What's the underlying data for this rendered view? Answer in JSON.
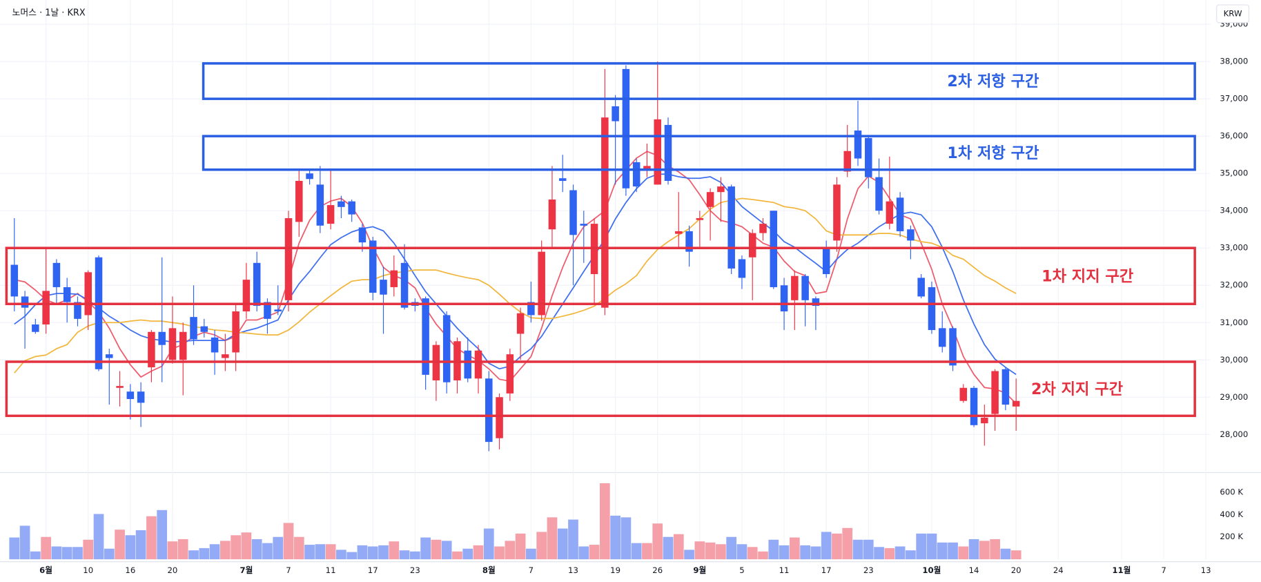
{
  "chart_data": {
    "type": "candlestick",
    "title": "노머스 · 1날 · KRX",
    "currency": "KRW",
    "categories": [
      null,
      null,
      null,
      "6월",
      null,
      null,
      null,
      "10",
      null,
      null,
      null,
      "16",
      null,
      null,
      null,
      "20",
      null,
      null,
      null,
      null,
      null,
      null,
      "7월",
      null,
      null,
      null,
      "7",
      null,
      null,
      null,
      "11",
      null,
      null,
      null,
      "17",
      null,
      null,
      null,
      "23",
      null,
      null,
      null,
      null,
      null,
      null,
      "8월",
      null,
      null,
      null,
      "7",
      null,
      null,
      null,
      "13",
      null,
      null,
      null,
      "19",
      null,
      null,
      null,
      "26",
      null,
      null,
      null,
      "9월",
      null,
      null,
      null,
      "5",
      null,
      null,
      null,
      "11",
      null,
      null,
      null,
      "17",
      null,
      null,
      null,
      "23",
      null,
      null,
      null,
      null,
      null,
      "10월",
      null,
      null,
      null,
      "14",
      null,
      null,
      null,
      "20",
      null,
      null,
      null,
      "24",
      null,
      null,
      null,
      null,
      null,
      "11월",
      null,
      null,
      null,
      "7",
      null,
      null,
      null,
      "13"
    ],
    "open": [
      32550,
      31700,
      30950,
      30950,
      32600,
      31950,
      31550,
      31200,
      32750,
      30150,
      29250,
      29150,
      29150,
      29800,
      30750,
      30000,
      30000,
      31150,
      30900,
      30600,
      30050,
      30200,
      31300,
      32600,
      31550,
      31350,
      31600,
      33700,
      35000,
      34700,
      33650,
      34250,
      34250,
      33550,
      33200,
      32150,
      31950,
      32600,
      31550,
      31650,
      29450,
      31200,
      29450,
      30250,
      29500,
      29500,
      27900,
      29100,
      30700,
      31550,
      31200,
      33500,
      34870,
      34550,
      33650,
      32300,
      31400,
      36800,
      37800,
      35300,
      35130,
      34700,
      36300,
      33380,
      33450,
      33750,
      34100,
      34500,
      34650,
      32700,
      32750,
      33400,
      34000,
      32000,
      31600,
      32250,
      31650,
      33000,
      33200,
      35050,
      36150,
      35950,
      34900,
      33650,
      34350,
      33500,
      32200,
      31950,
      30850,
      30850,
      28900,
      29250,
      28300,
      28550,
      29750,
      28750,
      null,
      null,
      null,
      null,
      null,
      null,
      null,
      null,
      null,
      null,
      null,
      null,
      null,
      null,
      null,
      null,
      null,
      null
    ],
    "high": [
      33800,
      31850,
      31100,
      33000,
      32700,
      32200,
      31700,
      32400,
      32800,
      30300,
      29700,
      29350,
      29400,
      30800,
      32750,
      31700,
      31000,
      32000,
      31100,
      30800,
      30700,
      31500,
      32600,
      32900,
      31650,
      32000,
      34000,
      35100,
      35100,
      35200,
      35100,
      34400,
      34300,
      33650,
      33300,
      32500,
      32800,
      33100,
      31650,
      31700,
      30500,
      31300,
      30600,
      30600,
      30400,
      29700,
      29100,
      30300,
      31400,
      32100,
      33200,
      35200,
      35500,
      34700,
      34000,
      33800,
      37800,
      37100,
      37900,
      35400,
      35800,
      38000,
      36500,
      34500,
      33600,
      34000,
      34600,
      34900,
      34700,
      32800,
      33500,
      33800,
      34000,
      32200,
      32400,
      32300,
      31700,
      33200,
      34900,
      36300,
      36950,
      36000,
      35400,
      35450,
      34500,
      33600,
      32300,
      32100,
      31300,
      30900,
      29350,
      29300,
      28800,
      29750,
      29800,
      29500,
      null,
      null,
      null,
      null,
      null,
      null,
      null,
      null,
      null,
      null,
      null,
      null,
      null,
      null,
      null,
      null,
      null,
      null
    ],
    "low": [
      31300,
      30300,
      30700,
      30700,
      31500,
      31000,
      30900,
      30800,
      29700,
      28800,
      28750,
      28400,
      28200,
      29400,
      29400,
      29900,
      29050,
      30400,
      30600,
      29600,
      29700,
      29700,
      31100,
      31300,
      30700,
      31200,
      31300,
      33300,
      34700,
      33400,
      33500,
      33800,
      33700,
      32900,
      31600,
      30700,
      31700,
      31350,
      31300,
      29200,
      28900,
      29100,
      29100,
      29400,
      29100,
      27550,
      27600,
      28900,
      30000,
      31000,
      31050,
      33000,
      34500,
      32000,
      32600,
      31500,
      31200,
      34700,
      34400,
      34500,
      34900,
      34700,
      34700,
      33000,
      32500,
      33000,
      33200,
      33700,
      32300,
      31900,
      31600,
      33200,
      31900,
      30800,
      30800,
      30900,
      30800,
      32200,
      32900,
      34900,
      35200,
      34600,
      33900,
      33500,
      33300,
      32700,
      31650,
      30700,
      30200,
      29700,
      28850,
      28200,
      27700,
      28100,
      28650,
      28100,
      null,
      null,
      null,
      null,
      null,
      null,
      null,
      null,
      null,
      null,
      null,
      null,
      null,
      null,
      null,
      null,
      null,
      null
    ],
    "close": [
      31700,
      31400,
      30750,
      31850,
      31950,
      31550,
      31100,
      32350,
      29750,
      30050,
      29300,
      28950,
      28850,
      30750,
      30400,
      30850,
      30750,
      30550,
      30750,
      30200,
      30150,
      31300,
      32150,
      31450,
      31100,
      31300,
      33800,
      34800,
      34850,
      33600,
      34150,
      34100,
      33900,
      33150,
      31800,
      31750,
      32400,
      31400,
      31450,
      29600,
      30400,
      29400,
      30500,
      29500,
      30250,
      27800,
      29000,
      30150,
      31250,
      31200,
      32900,
      34300,
      34800,
      33350,
      33600,
      33650,
      36500,
      36400,
      34600,
      34650,
      35200,
      36450,
      34800,
      33450,
      32900,
      33800,
      34500,
      34650,
      32450,
      32200,
      33400,
      33650,
      31950,
      31300,
      32250,
      31600,
      31450,
      32300,
      34700,
      35600,
      35400,
      34900,
      34000,
      34250,
      33450,
      33200,
      31700,
      30800,
      30350,
      29850,
      29250,
      28250,
      28450,
      29700,
      28800,
      28900,
      null,
      null,
      null,
      null,
      null,
      null,
      null,
      null,
      null,
      null,
      null,
      null,
      null,
      null,
      null,
      null,
      null,
      null
    ],
    "up_color": "#ec3445",
    "down_color": "#2f63f2",
    "ylim": [
      27000,
      39650
    ],
    "yticks": [
      {
        "value": 28000,
        "label": "28,000"
      },
      {
        "value": 29000,
        "label": "29,000"
      },
      {
        "value": 30000,
        "label": "30,000"
      },
      {
        "value": 31000,
        "label": "31,000"
      },
      {
        "value": 32000,
        "label": "32,000"
      },
      {
        "value": 33000,
        "label": "33,000"
      },
      {
        "value": 34000,
        "label": "34,000"
      },
      {
        "value": 35000,
        "label": "35,000"
      },
      {
        "value": 36000,
        "label": "36,000"
      },
      {
        "value": 37000,
        "label": "37,000"
      },
      {
        "value": 38000,
        "label": "38,000"
      },
      {
        "value": 39000,
        "label": "39,000"
      }
    ],
    "grid": true,
    "moving_averages": [
      {
        "color": "#ee5b6c",
        "values": [
          32150,
          32090,
          31870,
          31610,
          31500,
          31610,
          31780,
          31560,
          31280,
          30850,
          30300,
          29870,
          29540,
          29700,
          29830,
          30300,
          30410,
          30630,
          30740,
          30670,
          30520,
          30630,
          31070,
          31070,
          31170,
          31280,
          32150,
          33130,
          33740,
          34110,
          34260,
          34330,
          34110,
          33670,
          33020,
          32480,
          32260,
          32150,
          31930,
          31390,
          30960,
          30630,
          30300,
          30130,
          29980,
          29760,
          29480,
          29430,
          29760,
          30090,
          30850,
          31720,
          32480,
          33130,
          33570,
          33780,
          34000,
          34760,
          35090,
          35410,
          35590,
          35480,
          35200,
          35040,
          34830,
          34430,
          34000,
          33740,
          33670,
          33570,
          33350,
          33130,
          33020,
          32650,
          32370,
          32260,
          31780,
          31830,
          32700,
          33780,
          34590,
          34930,
          34760,
          34330,
          33890,
          33780,
          33130,
          32430,
          31500,
          30850,
          30090,
          29610,
          29260,
          29220,
          29110,
          28830,
          null,
          null,
          null,
          null,
          null,
          null,
          null,
          null,
          null,
          null,
          null,
          null,
          null,
          null,
          null,
          null,
          null,
          null
        ]
      },
      {
        "color": "#3e6ff0",
        "values": [
          30960,
          31170,
          31480,
          31720,
          31780,
          31780,
          31760,
          31610,
          31390,
          31170,
          31000,
          30800,
          30650,
          30560,
          30520,
          30480,
          30500,
          30520,
          30520,
          30520,
          30520,
          30690,
          30780,
          30850,
          30960,
          31070,
          31610,
          32040,
          32370,
          32740,
          33090,
          33280,
          33430,
          33520,
          33570,
          33460,
          33130,
          32700,
          32260,
          31830,
          31500,
          31170,
          30850,
          30560,
          30300,
          29910,
          29760,
          29830,
          30090,
          30300,
          30630,
          31070,
          31500,
          31930,
          32370,
          32800,
          33240,
          33780,
          34220,
          34590,
          34870,
          34980,
          34980,
          34910,
          34870,
          34870,
          34910,
          34760,
          34430,
          34110,
          33890,
          33670,
          33460,
          33170,
          33020,
          32800,
          32590,
          32370,
          32700,
          32960,
          33130,
          33350,
          33570,
          33740,
          33910,
          33960,
          33890,
          33570,
          33020,
          32370,
          31610,
          30960,
          30410,
          30020,
          29800,
          29610,
          null,
          null,
          null,
          null,
          null,
          null,
          null,
          null,
          null,
          null,
          null,
          null,
          null,
          null,
          null,
          null,
          null,
          null
        ]
      },
      {
        "color": "#f2b63c",
        "values": [
          29650,
          29980,
          30090,
          30130,
          30300,
          30410,
          30740,
          30910,
          31000,
          31000,
          31000,
          31040,
          31070,
          31040,
          31040,
          31000,
          30960,
          30890,
          30850,
          30800,
          30780,
          30740,
          30720,
          30690,
          30670,
          30670,
          30800,
          31020,
          31280,
          31500,
          31720,
          31930,
          32110,
          32150,
          32150,
          32260,
          32330,
          32370,
          32410,
          32410,
          32410,
          32330,
          32260,
          32200,
          32150,
          32000,
          31760,
          31500,
          31280,
          31130,
          31110,
          31110,
          31170,
          31240,
          31330,
          31440,
          31650,
          31870,
          32040,
          32260,
          32650,
          32960,
          33170,
          33350,
          33520,
          33780,
          34040,
          34220,
          34280,
          34330,
          34300,
          34260,
          34220,
          34110,
          34070,
          34000,
          33780,
          33460,
          33350,
          33350,
          33350,
          33350,
          33390,
          33390,
          33350,
          33240,
          33170,
          33130,
          33020,
          32800,
          32700,
          32480,
          32260,
          32110,
          31930,
          31780,
          null,
          null,
          null,
          null,
          null,
          null,
          null,
          null,
          null,
          null,
          null,
          null,
          null,
          null,
          null,
          null,
          null,
          null
        ]
      }
    ],
    "volume": {
      "up_color": "#f5a0a9",
      "down_color": "#93aaf7",
      "values": [
        195000,
        300000,
        70000,
        200000,
        115000,
        110000,
        110000,
        175000,
        405000,
        95000,
        265000,
        215000,
        260000,
        385000,
        440000,
        160000,
        180000,
        80000,
        100000,
        135000,
        165000,
        215000,
        240000,
        180000,
        145000,
        200000,
        325000,
        200000,
        130000,
        135000,
        135000,
        85000,
        65000,
        125000,
        115000,
        125000,
        160000,
        80000,
        70000,
        195000,
        175000,
        165000,
        70000,
        95000,
        125000,
        275000,
        115000,
        165000,
        230000,
        95000,
        245000,
        375000,
        275000,
        355000,
        115000,
        130000,
        680000,
        390000,
        375000,
        145000,
        145000,
        320000,
        200000,
        225000,
        85000,
        160000,
        150000,
        135000,
        200000,
        135000,
        110000,
        70000,
        175000,
        125000,
        195000,
        125000,
        115000,
        245000,
        230000,
        280000,
        175000,
        175000,
        110000,
        100000,
        115000,
        80000,
        230000,
        230000,
        150000,
        150000,
        115000,
        180000,
        165000,
        180000,
        95000,
        80000,
        null,
        null,
        null,
        null,
        null,
        null,
        null,
        null,
        null,
        null,
        null,
        null,
        null,
        null,
        null,
        null,
        null,
        null
      ],
      "ylim": [
        0,
        775000
      ],
      "yticks": [
        {
          "value": 200000,
          "label": "200 K"
        },
        {
          "value": 400000,
          "label": "400 K"
        },
        {
          "value": 600000,
          "label": "600 K"
        }
      ]
    },
    "zones": [
      {
        "label": "2차 저항 구간",
        "low": 37000,
        "high": 37950,
        "color": "#2b5fe3"
      },
      {
        "label": "1차 저항 구간",
        "low": 35100,
        "high": 36000,
        "color": "#2b5fe3"
      },
      {
        "label": "1차 지지 구간",
        "low": 31500,
        "high": 33000,
        "color": "#e3313f"
      },
      {
        "label": "2차 지지 구간",
        "low": 28500,
        "high": 29950,
        "color": "#e3313f"
      }
    ]
  }
}
